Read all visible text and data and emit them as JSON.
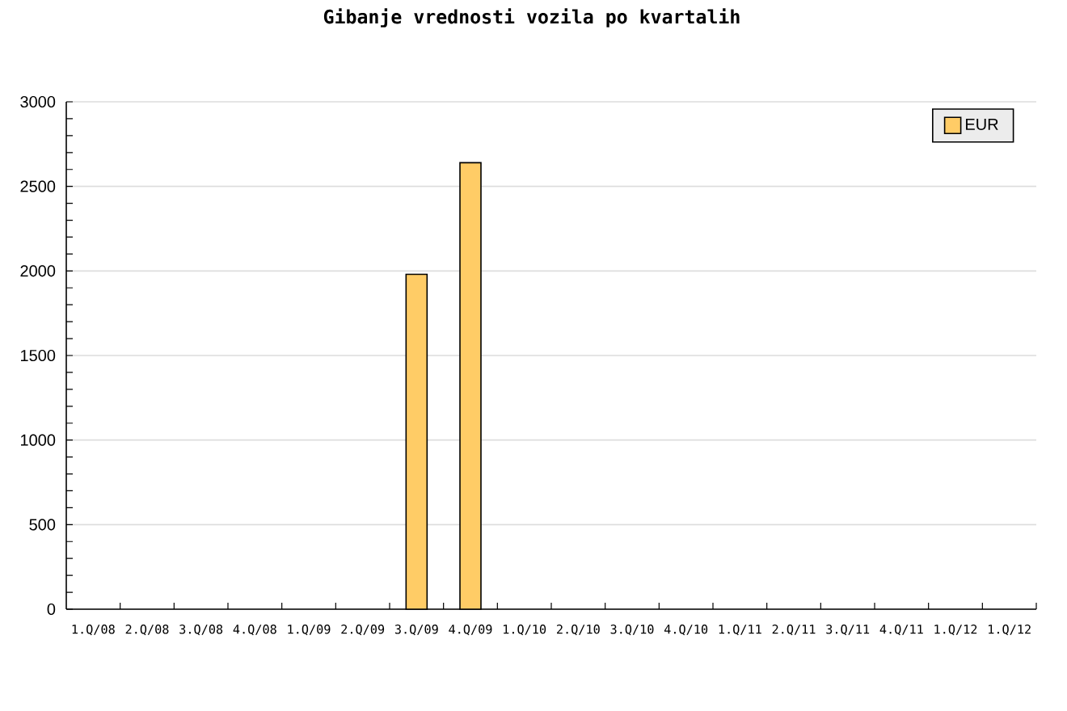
{
  "chart_data": {
    "type": "bar",
    "title": "Gibanje vrednosti vozila po kvartalih",
    "categories": [
      "1.Q/08",
      "2.Q/08",
      "3.Q/08",
      "4.Q/08",
      "1.Q/09",
      "2.Q/09",
      "3.Q/09",
      "4.Q/09",
      "1.Q/10",
      "2.Q/10",
      "3.Q/10",
      "4.Q/10",
      "1.Q/11",
      "2.Q/11",
      "3.Q/11",
      "4.Q/11",
      "1.Q/12",
      "1.Q/12"
    ],
    "series": [
      {
        "name": "EUR",
        "color": "#ffcc66",
        "values": [
          null,
          null,
          null,
          null,
          null,
          null,
          1980,
          2640,
          null,
          null,
          null,
          null,
          null,
          null,
          null,
          null,
          null,
          null
        ]
      }
    ],
    "ylim": [
      0,
      3000
    ],
    "yticks": [
      0,
      500,
      1000,
      1500,
      2000,
      2500,
      3000
    ],
    "grid": "y",
    "legend": "top right"
  }
}
